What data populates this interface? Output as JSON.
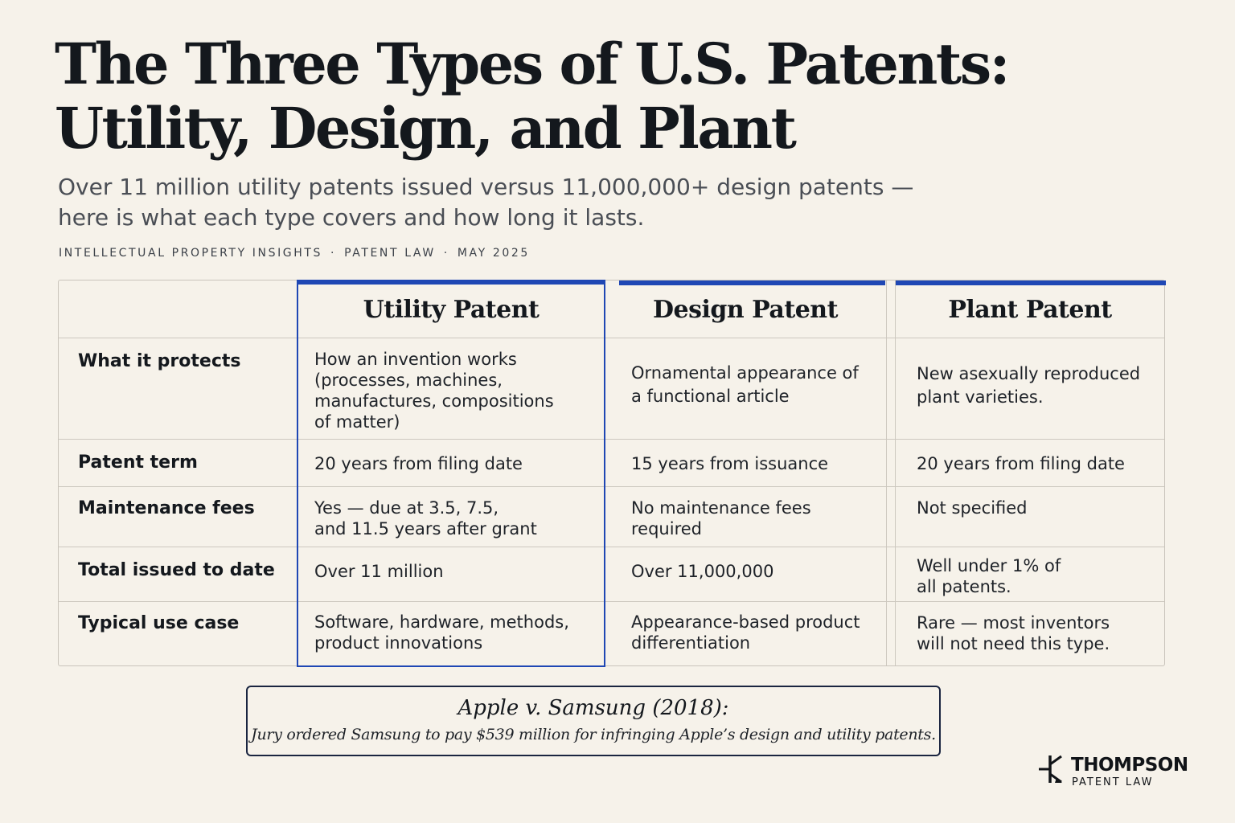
{
  "header": {
    "title_line1": "The Three Types of U.S. Patents:",
    "title_line2": "Utility, Design, and Plant",
    "subtitle_line1": "Over 11 million utility patents issued versus 11,000,000+ design patents —",
    "subtitle_line2": "here is what each type covers and how long it lasts.",
    "kicker": {
      "section": "INTELLECTUAL PROPERTY INSIGHTS",
      "category": "PATENT LAW",
      "date": "MAY 2025",
      "separator": "·"
    }
  },
  "table": {
    "columns": [
      "Utility Patent",
      "Design Patent",
      "Plant Patent"
    ],
    "highlighted_column": "Utility Patent",
    "accent_color": "#1f47b4",
    "rows": [
      {
        "label": "What it protects",
        "utility": "How an invention works\n(processes, machines,\nmanufactures, compositions\nof matter)",
        "design": "Ornamental appearance of\na functional article",
        "plant": "New asexually reproduced\nplant varieties."
      },
      {
        "label": "Patent term",
        "utility": "20 years from filing date",
        "design": "15 years from issuance",
        "plant": "20 years from filing date"
      },
      {
        "label": "Maintenance fees",
        "utility": "Yes — due at 3.5, 7.5,\nand 11.5 years after grant",
        "design": "No maintenance fees\nrequired",
        "plant": "Not specified"
      },
      {
        "label": "Total issued to date",
        "utility": "Over 11 million",
        "design": "Over 11,000,000",
        "plant": "Well under 1% of\nall patents."
      },
      {
        "label": "Typical use case",
        "utility": "Software, hardware, methods,\nproduct innovations",
        "design": "Appearance-based product\ndifferentiation",
        "plant": "Rare — most inventors\nwill not need this type."
      }
    ]
  },
  "callout": {
    "title": "Apple v. Samsung (2018):",
    "text": "Jury ordered Samsung to pay $539 million for infringing Apple’s design and utility patents."
  },
  "brand": {
    "name": "THOMPSON",
    "tagline": "PATENT LAW",
    "icon": "circuit-t-mark-icon"
  }
}
